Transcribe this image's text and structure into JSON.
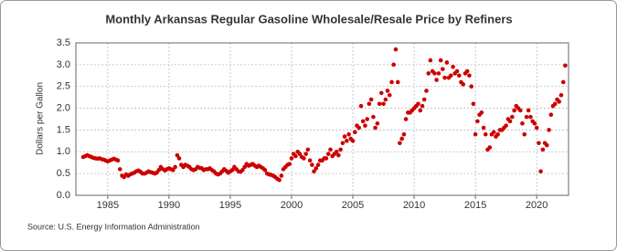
{
  "chart_data": {
    "type": "scatter",
    "title": "Monthly Arkansas Regular Gasoline Wholesale/Resale Price by Refiners",
    "y_label": "Dollars per Gallon",
    "source": "Source: U.S. Energy Information Administration",
    "color": "#cc0000",
    "grid": true,
    "xlim": [
      1982.4,
      2022.6
    ],
    "ylim": [
      0,
      3.5
    ],
    "xticks": [
      1985,
      1990,
      1995,
      2000,
      2005,
      2010,
      2015,
      2020
    ],
    "yticks": [
      {
        "value": 0,
        "label": "0.0"
      },
      {
        "value": 0.5,
        "label": "0.5"
      },
      {
        "value": 1,
        "label": "1.0"
      },
      {
        "value": 1.5,
        "label": "1.5"
      },
      {
        "value": 2,
        "label": "2.0"
      },
      {
        "value": 2.5,
        "label": "2.5"
      },
      {
        "value": 3,
        "label": "3.0"
      },
      {
        "value": 3.5,
        "label": "3.5"
      }
    ],
    "x": [
      1983.0,
      1983.17,
      1983.33,
      1983.5,
      1983.67,
      1983.83,
      1984.0,
      1984.17,
      1984.33,
      1984.5,
      1984.67,
      1984.83,
      1985.0,
      1985.17,
      1985.33,
      1985.5,
      1985.67,
      1985.83,
      1986.0,
      1986.17,
      1986.33,
      1986.5,
      1986.67,
      1986.83,
      1987.0,
      1987.17,
      1987.33,
      1987.5,
      1987.67,
      1987.83,
      1988.0,
      1988.17,
      1988.33,
      1988.5,
      1988.67,
      1988.83,
      1989.0,
      1989.17,
      1989.33,
      1989.5,
      1989.67,
      1989.83,
      1990.0,
      1990.17,
      1990.33,
      1990.5,
      1990.67,
      1990.83,
      1991.0,
      1991.17,
      1991.33,
      1991.5,
      1991.67,
      1991.83,
      1992.0,
      1992.17,
      1992.33,
      1992.5,
      1992.67,
      1992.83,
      1993.0,
      1993.17,
      1993.33,
      1993.5,
      1993.67,
      1993.83,
      1994.0,
      1994.17,
      1994.33,
      1994.5,
      1994.67,
      1994.83,
      1995.0,
      1995.17,
      1995.33,
      1995.5,
      1995.67,
      1995.83,
      1996.0,
      1996.17,
      1996.33,
      1996.5,
      1996.67,
      1996.83,
      1997.0,
      1997.17,
      1997.33,
      1997.5,
      1997.67,
      1997.83,
      1998.0,
      1998.17,
      1998.33,
      1998.5,
      1998.67,
      1998.83,
      1999.0,
      1999.17,
      1999.33,
      1999.5,
      1999.67,
      1999.83,
      2000.0,
      2000.17,
      2000.33,
      2000.5,
      2000.67,
      2000.83,
      2001.0,
      2001.17,
      2001.33,
      2001.5,
      2001.67,
      2001.83,
      2002.0,
      2002.17,
      2002.33,
      2002.5,
      2002.67,
      2002.83,
      2003.0,
      2003.17,
      2003.33,
      2003.5,
      2003.67,
      2003.83,
      2004.0,
      2004.17,
      2004.33,
      2004.5,
      2004.67,
      2004.83,
      2005.0,
      2005.17,
      2005.33,
      2005.5,
      2005.67,
      2005.83,
      2006.0,
      2006.17,
      2006.33,
      2006.5,
      2006.67,
      2006.83,
      2007.0,
      2007.17,
      2007.33,
      2007.5,
      2007.67,
      2007.83,
      2008.0,
      2008.17,
      2008.33,
      2008.5,
      2008.67,
      2008.83,
      2009.0,
      2009.17,
      2009.33,
      2009.5,
      2009.67,
      2009.83,
      2010.0,
      2010.17,
      2010.33,
      2010.5,
      2010.67,
      2010.83,
      2011.0,
      2011.17,
      2011.33,
      2011.5,
      2011.67,
      2011.83,
      2012.0,
      2012.17,
      2012.33,
      2012.5,
      2012.67,
      2012.83,
      2013.0,
      2013.17,
      2013.33,
      2013.5,
      2013.67,
      2013.83,
      2014.0,
      2014.17,
      2014.33,
      2014.5,
      2014.67,
      2014.83,
      2015.0,
      2015.17,
      2015.33,
      2015.5,
      2015.67,
      2015.83,
      2016.0,
      2016.17,
      2016.33,
      2016.5,
      2016.67,
      2016.83,
      2017.0,
      2017.17,
      2017.33,
      2017.5,
      2017.67,
      2017.83,
      2018.0,
      2018.17,
      2018.33,
      2018.5,
      2018.67,
      2018.83,
      2019.0,
      2019.17,
      2019.33,
      2019.5,
      2019.67,
      2019.83,
      2020.0,
      2020.17,
      2020.33,
      2020.5,
      2020.67,
      2020.83,
      2021.0,
      2021.17,
      2021.33,
      2021.5,
      2021.67,
      2021.83,
      2022.0,
      2022.17,
      2022.33
    ],
    "values": [
      0.88,
      0.9,
      0.92,
      0.9,
      0.88,
      0.86,
      0.85,
      0.84,
      0.85,
      0.83,
      0.82,
      0.8,
      0.78,
      0.8,
      0.82,
      0.84,
      0.82,
      0.8,
      0.6,
      0.45,
      0.42,
      0.48,
      0.45,
      0.48,
      0.5,
      0.52,
      0.55,
      0.57,
      0.54,
      0.5,
      0.5,
      0.52,
      0.55,
      0.53,
      0.52,
      0.5,
      0.52,
      0.58,
      0.65,
      0.6,
      0.57,
      0.6,
      0.62,
      0.6,
      0.58,
      0.65,
      0.92,
      0.85,
      0.7,
      0.65,
      0.7,
      0.68,
      0.65,
      0.6,
      0.58,
      0.6,
      0.65,
      0.63,
      0.62,
      0.58,
      0.6,
      0.6,
      0.62,
      0.58,
      0.55,
      0.5,
      0.48,
      0.5,
      0.55,
      0.6,
      0.56,
      0.52,
      0.55,
      0.58,
      0.65,
      0.6,
      0.55,
      0.54,
      0.58,
      0.65,
      0.72,
      0.68,
      0.7,
      0.72,
      0.68,
      0.65,
      0.68,
      0.65,
      0.62,
      0.58,
      0.5,
      0.48,
      0.47,
      0.45,
      0.42,
      0.38,
      0.35,
      0.45,
      0.6,
      0.65,
      0.7,
      0.72,
      0.85,
      0.95,
      0.9,
      1.0,
      0.95,
      0.88,
      0.85,
      0.95,
      1.05,
      0.8,
      0.7,
      0.55,
      0.62,
      0.7,
      0.8,
      0.8,
      0.85,
      0.85,
      0.95,
      1.05,
      0.9,
      0.95,
      1.0,
      0.92,
      1.05,
      1.2,
      1.35,
      1.25,
      1.4,
      1.3,
      1.25,
      1.45,
      1.6,
      1.55,
      2.05,
      1.7,
      1.6,
      1.75,
      2.1,
      2.2,
      1.8,
      1.55,
      1.65,
      2.1,
      2.35,
      2.1,
      2.2,
      2.4,
      2.3,
      2.6,
      3.0,
      3.35,
      2.6,
      1.2,
      1.3,
      1.4,
      1.75,
      1.9,
      1.9,
      1.95,
      2.0,
      2.05,
      2.1,
      1.95,
      2.05,
      2.2,
      2.4,
      2.8,
      3.1,
      2.85,
      2.8,
      2.65,
      2.8,
      3.1,
      2.9,
      2.7,
      3.05,
      2.7,
      2.75,
      2.95,
      2.8,
      2.85,
      2.75,
      2.6,
      2.55,
      2.8,
      2.85,
      2.75,
      2.5,
      2.1,
      1.4,
      1.7,
      1.85,
      1.9,
      1.55,
      1.4,
      1.05,
      1.1,
      1.4,
      1.45,
      1.35,
      1.4,
      1.5,
      1.5,
      1.55,
      1.6,
      1.75,
      1.7,
      1.8,
      1.95,
      2.05,
      2.0,
      1.95,
      1.65,
      1.4,
      1.8,
      1.95,
      1.8,
      1.7,
      1.65,
      1.55,
      1.2,
      0.55,
      1.05,
      1.2,
      1.15,
      1.5,
      1.85,
      2.05,
      2.1,
      2.2,
      2.15,
      2.3,
      2.6,
      2.98
    ]
  }
}
